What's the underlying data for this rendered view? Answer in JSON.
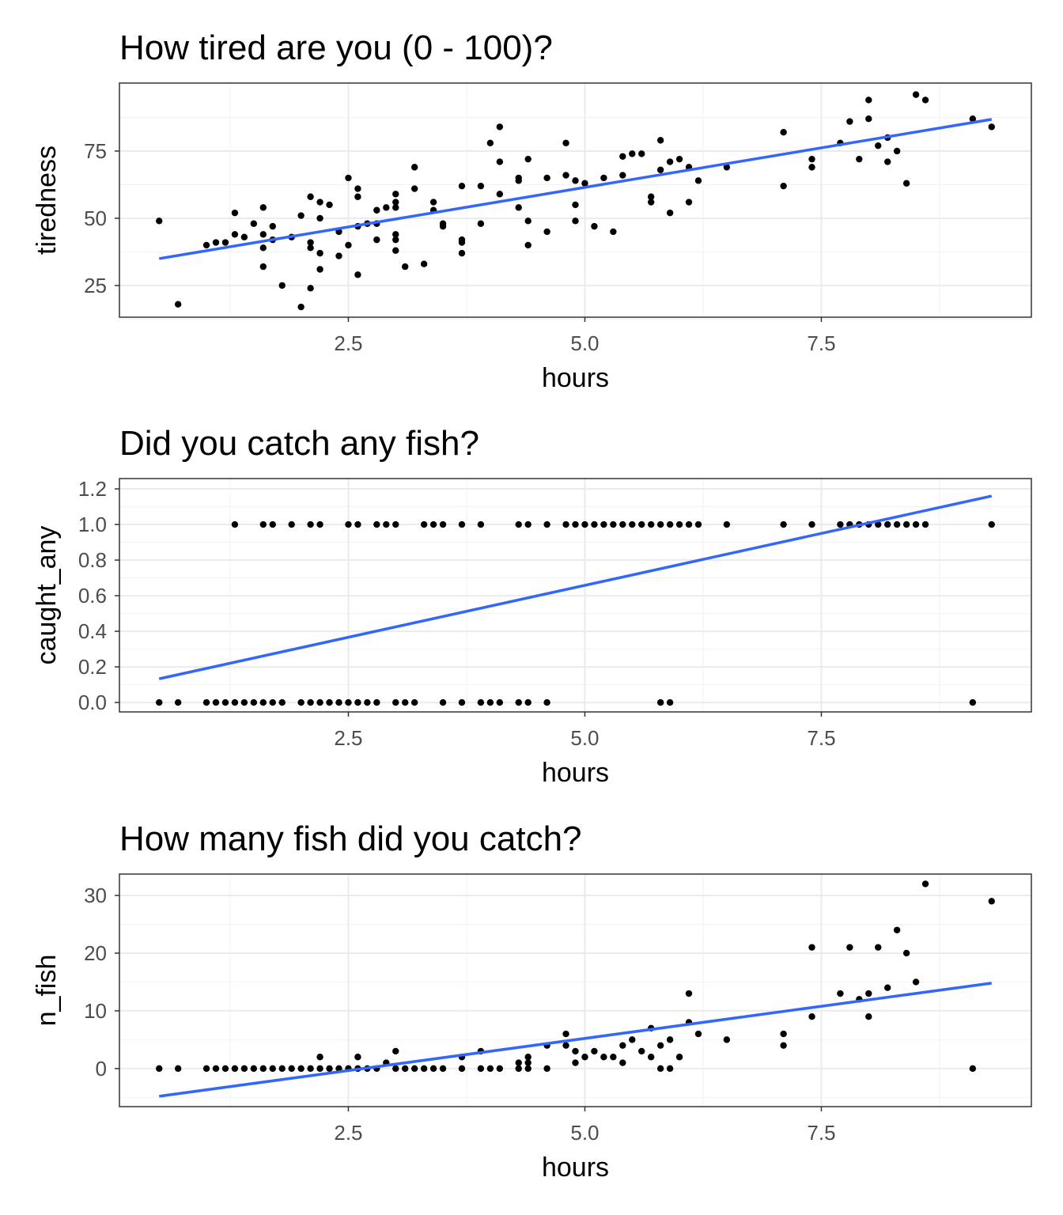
{
  "chart_data": [
    {
      "type": "scatter",
      "title": "How tired are you (0 - 100)?",
      "xlabel": "hours",
      "ylabel": "tiredness",
      "xlim": [
        0.08,
        9.72
      ],
      "ylim": [
        13.2,
        100.3
      ],
      "xticks": [
        2.5,
        5.0,
        7.5
      ],
      "xtick_labels": [
        "2.5",
        "5.0",
        "7.5"
      ],
      "yticks": [
        25,
        50,
        75
      ],
      "ytick_labels": [
        "25",
        "50",
        "75"
      ],
      "yminor": [
        12.5,
        37.5,
        62.5,
        87.5
      ],
      "grid": true,
      "points": [
        [
          0.5,
          49
        ],
        [
          0.7,
          18
        ],
        [
          1.0,
          40
        ],
        [
          1.1,
          41
        ],
        [
          1.2,
          41
        ],
        [
          1.3,
          52
        ],
        [
          1.3,
          44
        ],
        [
          1.4,
          43
        ],
        [
          1.5,
          48
        ],
        [
          1.6,
          54
        ],
        [
          1.6,
          44
        ],
        [
          1.6,
          39
        ],
        [
          1.6,
          32
        ],
        [
          1.7,
          47
        ],
        [
          1.7,
          42
        ],
        [
          1.8,
          25
        ],
        [
          1.9,
          43
        ],
        [
          2.0,
          51
        ],
        [
          2.0,
          17
        ],
        [
          2.1,
          58
        ],
        [
          2.1,
          41
        ],
        [
          2.1,
          39
        ],
        [
          2.1,
          24
        ],
        [
          2.2,
          56
        ],
        [
          2.2,
          50
        ],
        [
          2.2,
          37
        ],
        [
          2.2,
          31
        ],
        [
          2.3,
          55
        ],
        [
          2.4,
          45
        ],
        [
          2.4,
          36
        ],
        [
          2.5,
          65
        ],
        [
          2.5,
          40
        ],
        [
          2.6,
          61
        ],
        [
          2.6,
          58
        ],
        [
          2.6,
          47
        ],
        [
          2.6,
          29
        ],
        [
          2.7,
          48
        ],
        [
          2.8,
          53
        ],
        [
          2.8,
          48
        ],
        [
          2.8,
          42
        ],
        [
          2.9,
          54
        ],
        [
          3.0,
          59
        ],
        [
          3.0,
          56
        ],
        [
          3.0,
          54
        ],
        [
          3.0,
          44
        ],
        [
          3.0,
          42
        ],
        [
          3.0,
          38
        ],
        [
          3.1,
          32
        ],
        [
          3.2,
          69
        ],
        [
          3.2,
          61
        ],
        [
          3.3,
          33
        ],
        [
          3.4,
          56
        ],
        [
          3.4,
          53
        ],
        [
          3.5,
          48
        ],
        [
          3.5,
          47
        ],
        [
          3.7,
          62
        ],
        [
          3.7,
          42
        ],
        [
          3.7,
          41
        ],
        [
          3.7,
          37
        ],
        [
          3.9,
          62
        ],
        [
          3.9,
          48
        ],
        [
          4.0,
          78
        ],
        [
          4.1,
          84
        ],
        [
          4.1,
          71
        ],
        [
          4.1,
          59
        ],
        [
          4.3,
          65
        ],
        [
          4.3,
          64
        ],
        [
          4.3,
          54
        ],
        [
          4.4,
          72
        ],
        [
          4.4,
          49
        ],
        [
          4.4,
          40
        ],
        [
          4.6,
          65
        ],
        [
          4.6,
          45
        ],
        [
          4.8,
          78
        ],
        [
          4.8,
          66
        ],
        [
          4.9,
          64
        ],
        [
          4.9,
          55
        ],
        [
          4.9,
          49
        ],
        [
          5.0,
          63
        ],
        [
          5.1,
          47
        ],
        [
          5.2,
          65
        ],
        [
          5.3,
          45
        ],
        [
          5.4,
          73
        ],
        [
          5.4,
          66
        ],
        [
          5.5,
          74
        ],
        [
          5.6,
          74
        ],
        [
          5.7,
          58
        ],
        [
          5.7,
          56
        ],
        [
          5.8,
          68
        ],
        [
          5.8,
          79
        ],
        [
          5.9,
          71
        ],
        [
          5.9,
          52
        ],
        [
          6.0,
          72
        ],
        [
          6.1,
          69
        ],
        [
          6.1,
          56
        ],
        [
          6.2,
          64
        ],
        [
          6.5,
          69
        ],
        [
          7.1,
          82
        ],
        [
          7.1,
          62
        ],
        [
          7.4,
          72
        ],
        [
          7.4,
          69
        ],
        [
          7.7,
          78
        ],
        [
          7.8,
          86
        ],
        [
          7.9,
          72
        ],
        [
          8.0,
          94
        ],
        [
          8.0,
          87
        ],
        [
          8.1,
          77
        ],
        [
          8.2,
          80
        ],
        [
          8.2,
          71
        ],
        [
          8.3,
          75
        ],
        [
          8.4,
          63
        ],
        [
          8.5,
          96
        ],
        [
          8.6,
          94
        ],
        [
          9.1,
          87
        ],
        [
          9.3,
          84
        ]
      ],
      "fit_line": {
        "x": [
          0.5,
          9.3
        ],
        "y": [
          35.0,
          86.8
        ],
        "color": "#3366FF"
      }
    },
    {
      "type": "scatter",
      "title": "Did you catch any fish?",
      "xlabel": "hours",
      "ylabel": "caught_any",
      "xlim": [
        0.08,
        9.72
      ],
      "ylim": [
        -0.053,
        1.258
      ],
      "xticks": [
        2.5,
        5.0,
        7.5
      ],
      "xtick_labels": [
        "2.5",
        "5.0",
        "7.5"
      ],
      "yticks": [
        0,
        0.2,
        0.4,
        0.6,
        0.8,
        1.0,
        1.2
      ],
      "ytick_labels": [
        "0.0",
        "0.2",
        "0.4",
        "0.6",
        "0.8",
        "1.0",
        "1.2"
      ],
      "yminor": [
        0.1,
        0.3,
        0.5,
        0.7,
        0.9,
        1.1
      ],
      "grid": true,
      "points_x_at_1": [
        1.3,
        1.6,
        1.7,
        1.9,
        2.1,
        2.2,
        2.5,
        2.6,
        2.8,
        2.9,
        3.0,
        3.3,
        3.4,
        3.5,
        3.7,
        3.9,
        4.3,
        4.4,
        4.6,
        4.8,
        4.9,
        5.0,
        5.1,
        5.2,
        5.3,
        5.4,
        5.5,
        5.6,
        5.7,
        5.8,
        5.9,
        6.0,
        6.1,
        6.2,
        6.5,
        7.1,
        7.4,
        7.7,
        7.8,
        7.9,
        8.0,
        8.1,
        8.2,
        8.3,
        8.4,
        8.5,
        8.6,
        9.3
      ],
      "points_x_at_0": [
        0.5,
        0.7,
        1.0,
        1.1,
        1.2,
        1.3,
        1.4,
        1.5,
        1.6,
        1.7,
        1.8,
        2.0,
        2.1,
        2.2,
        2.3,
        2.4,
        2.5,
        2.6,
        2.7,
        2.8,
        3.0,
        3.1,
        3.2,
        3.5,
        3.7,
        3.9,
        4.0,
        4.1,
        4.3,
        4.4,
        4.6,
        5.8,
        5.9,
        9.1
      ],
      "fit_line": {
        "x": [
          0.5,
          9.3
        ],
        "y": [
          0.133,
          1.16
        ],
        "color": "#3366FF"
      }
    },
    {
      "type": "scatter",
      "title": "How many fish did you catch?",
      "xlabel": "hours",
      "ylabel": "n_fish",
      "xlim": [
        0.08,
        9.72
      ],
      "ylim": [
        -6.6,
        33.7
      ],
      "xticks": [
        2.5,
        5.0,
        7.5
      ],
      "xtick_labels": [
        "2.5",
        "5.0",
        "7.5"
      ],
      "yticks": [
        0,
        10,
        20,
        30
      ],
      "ytick_labels": [
        "0",
        "10",
        "20",
        "30"
      ],
      "yminor": [
        -5,
        5,
        15,
        25
      ],
      "grid": true,
      "points": [
        [
          0.5,
          0
        ],
        [
          0.7,
          0
        ],
        [
          1.0,
          0
        ],
        [
          1.1,
          0
        ],
        [
          1.2,
          0
        ],
        [
          1.3,
          0
        ],
        [
          1.4,
          0
        ],
        [
          1.5,
          0
        ],
        [
          1.6,
          0
        ],
        [
          1.7,
          0
        ],
        [
          1.8,
          0
        ],
        [
          1.9,
          0
        ],
        [
          2.0,
          0
        ],
        [
          2.1,
          0
        ],
        [
          2.2,
          0
        ],
        [
          2.2,
          2
        ],
        [
          2.3,
          0
        ],
        [
          2.4,
          0
        ],
        [
          2.5,
          0
        ],
        [
          2.6,
          0
        ],
        [
          2.6,
          2
        ],
        [
          2.7,
          0
        ],
        [
          2.8,
          0
        ],
        [
          2.9,
          1
        ],
        [
          3.0,
          0
        ],
        [
          3.0,
          3
        ],
        [
          3.1,
          0
        ],
        [
          3.2,
          0
        ],
        [
          3.3,
          0
        ],
        [
          3.4,
          0
        ],
        [
          3.5,
          0
        ],
        [
          3.7,
          0
        ],
        [
          3.7,
          2
        ],
        [
          3.9,
          0
        ],
        [
          3.9,
          3
        ],
        [
          4.0,
          0
        ],
        [
          4.1,
          0
        ],
        [
          4.3,
          0
        ],
        [
          4.3,
          1
        ],
        [
          4.4,
          0
        ],
        [
          4.4,
          1
        ],
        [
          4.4,
          2
        ],
        [
          4.6,
          0
        ],
        [
          4.6,
          4
        ],
        [
          4.8,
          6
        ],
        [
          4.8,
          4
        ],
        [
          4.9,
          3
        ],
        [
          4.9,
          1
        ],
        [
          5.0,
          2
        ],
        [
          5.1,
          3
        ],
        [
          5.2,
          2
        ],
        [
          5.3,
          2
        ],
        [
          5.4,
          1
        ],
        [
          5.4,
          4
        ],
        [
          5.5,
          5
        ],
        [
          5.6,
          3
        ],
        [
          5.7,
          7
        ],
        [
          5.7,
          2
        ],
        [
          5.8,
          0
        ],
        [
          5.8,
          4
        ],
        [
          5.9,
          0
        ],
        [
          5.9,
          5
        ],
        [
          6.0,
          2
        ],
        [
          6.1,
          13
        ],
        [
          6.1,
          8
        ],
        [
          6.2,
          6
        ],
        [
          6.5,
          5
        ],
        [
          7.1,
          6
        ],
        [
          7.1,
          4
        ],
        [
          7.4,
          21
        ],
        [
          7.4,
          9
        ],
        [
          7.7,
          13
        ],
        [
          7.8,
          21
        ],
        [
          7.9,
          12
        ],
        [
          8.0,
          13
        ],
        [
          8.0,
          9
        ],
        [
          8.1,
          21
        ],
        [
          8.2,
          14
        ],
        [
          8.3,
          24
        ],
        [
          8.4,
          20
        ],
        [
          8.5,
          15
        ],
        [
          8.6,
          32
        ],
        [
          9.1,
          0
        ],
        [
          9.3,
          29
        ]
      ],
      "fit_line": {
        "x": [
          0.5,
          9.3
        ],
        "y": [
          -4.8,
          14.8
        ],
        "color": "#3366FF"
      }
    }
  ]
}
